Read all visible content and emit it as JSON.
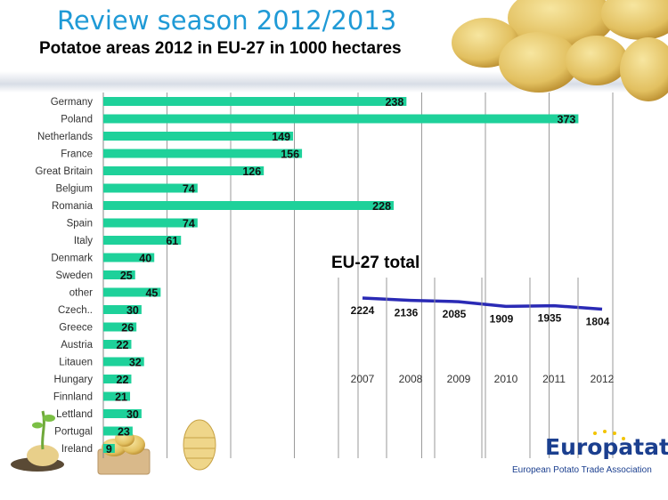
{
  "slide_title": "Review season 2012/2013",
  "logo": {
    "word": "Europatat",
    "subtitle": "European Potato Trade Association"
  },
  "chart_data": [
    {
      "type": "bar",
      "orientation": "horizontal",
      "title": "Potatoe areas 2012 in EU-27 in 1000 hectares",
      "categories": [
        "Germany",
        "Poland",
        "Netherlands",
        "France",
        "Great Britain",
        "Belgium",
        "Romania",
        "Spain",
        "Italy",
        "Denmark",
        "Sweden",
        "other",
        "Czech..",
        "Greece",
        "Austria",
        "Litauen",
        "Hungary",
        "Finnland",
        "Lettland",
        "Portugal",
        "Ireland"
      ],
      "values": [
        238,
        373,
        149,
        156,
        126,
        74,
        228,
        74,
        61,
        40,
        25,
        45,
        30,
        26,
        22,
        32,
        22,
        21,
        30,
        23,
        9
      ],
      "xlim": [
        0,
        400
      ],
      "grid": true,
      "bar_color": "#1ed19a",
      "data_labels": true
    },
    {
      "type": "line",
      "title": "EU-27 total",
      "x": [
        "2007",
        "2008",
        "2009",
        "2010",
        "2011",
        "2012"
      ],
      "values": [
        2224,
        2136,
        2085,
        1909,
        1935,
        1804
      ],
      "line_color": "#2a2ab5",
      "data_labels": true
    }
  ]
}
